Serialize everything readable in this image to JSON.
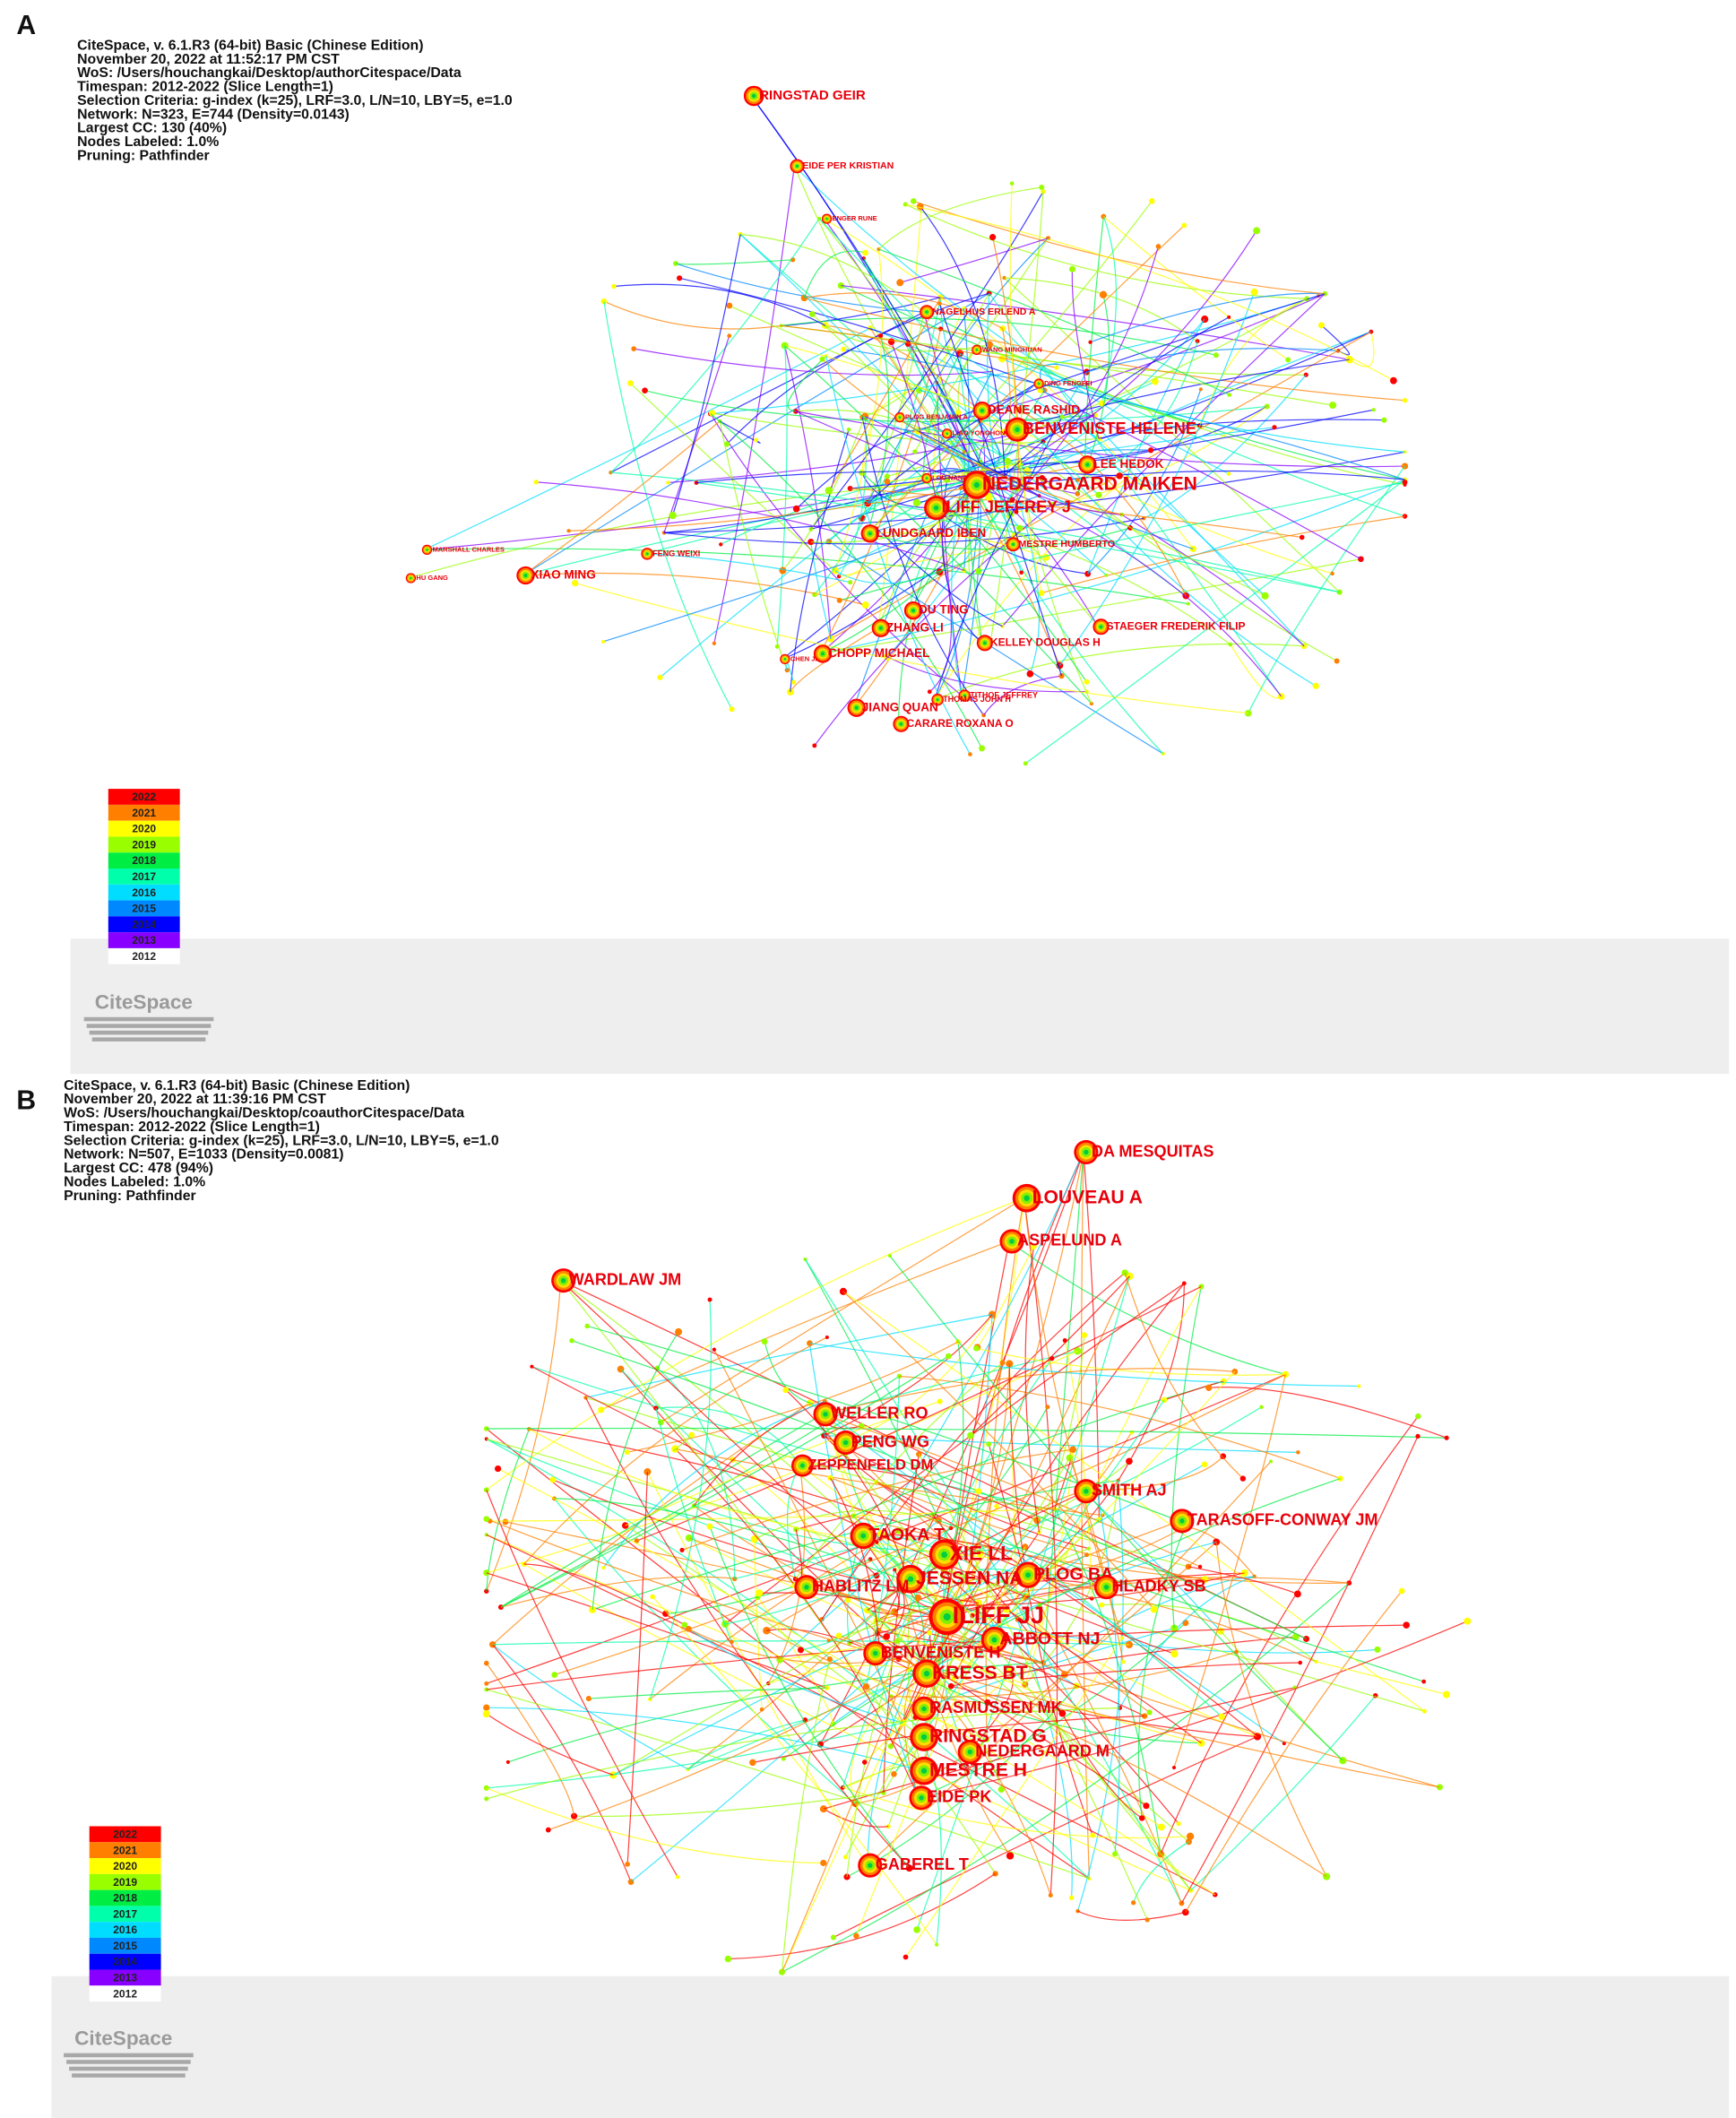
{
  "panels": [
    {
      "label": "A",
      "info": [
        "CiteSpace, v. 6.1.R3 (64-bit) Basic (Chinese Edition)",
        "November 20, 2022 at 11:52:17 PM CST",
        "WoS: /Users/houchangkai/Desktop/authorCitespace/Data",
        "Timespan: 2012-2022 (Slice Length=1)",
        "Selection Criteria: g-index (k=25), LRF=3.0, L/N=10, LBY=5, e=1.0",
        "Network: N=323, E=744 (Density=0.0143)",
        "Largest CC: 130 (40%)",
        "Nodes Labeled: 1.0%",
        "Pruning: Pathfinder"
      ],
      "nodes": [
        {
          "label": "RINGSTAD GEIR"
        },
        {
          "label": "EIDE PER KRISTIAN"
        },
        {
          "label": "ENGER RUNE"
        },
        {
          "label": "NAGELHUS ERLEND A"
        },
        {
          "label": "WANG MINGHUAN"
        },
        {
          "label": "DING FENGFEI"
        },
        {
          "label": "DEANE RASHID"
        },
        {
          "label": "PLOG BENJAMIN A"
        },
        {
          "label": "LIAO YONGHONG"
        },
        {
          "label": "BENVENISTE HELENE"
        },
        {
          "label": "LOU NANHONG"
        },
        {
          "label": "LEE HEDOK"
        },
        {
          "label": "NEDERGAARD MAIKEN"
        },
        {
          "label": "ILIFF JEFFREY J"
        },
        {
          "label": "LUNDGAARD IBEN"
        },
        {
          "label": "MESTRE HUMBERTO"
        },
        {
          "label": "MARSHALL CHARLES"
        },
        {
          "label": "FENG WEIXI"
        },
        {
          "label": "HU GANG"
        },
        {
          "label": "XIAO MING"
        },
        {
          "label": "DU TING"
        },
        {
          "label": "STAEGER FREDERIK FILIP"
        },
        {
          "label": "ZHANG LI"
        },
        {
          "label": "KELLEY DOUGLAS H"
        },
        {
          "label": "CHEN JIE"
        },
        {
          "label": "CHOPP MICHAEL"
        },
        {
          "label": "TITHOF JEFFREY"
        },
        {
          "label": "THOMAS JOHN H"
        },
        {
          "label": "JIANG QUAN"
        },
        {
          "label": "CARARE ROXANA O"
        }
      ],
      "legend": [
        "2022",
        "2021",
        "2020",
        "2019",
        "2018",
        "2017",
        "2016",
        "2015",
        "2014",
        "2013",
        "2012"
      ],
      "logo": "CiteSpace"
    },
    {
      "label": "B",
      "info": [
        "CiteSpace, v. 6.1.R3 (64-bit) Basic (Chinese Edition)",
        "November 20, 2022 at 11:39:16 PM CST",
        "WoS: /Users/houchangkai/Desktop/coauthorCitespace/Data",
        "Timespan: 2012-2022 (Slice Length=1)",
        "Selection Criteria: g-index (k=25), LRF=3.0, L/N=10, LBY=5, e=1.0",
        "Network: N=507, E=1033 (Density=0.0081)",
        "Largest CC: 478 (94%)",
        "Nodes Labeled: 1.0%",
        "Pruning: Pathfinder"
      ],
      "nodes": [
        {
          "label": "DA MESQUITAS"
        },
        {
          "label": "LOUVEAU A"
        },
        {
          "label": "ASPELUND A"
        },
        {
          "label": "WARDLAW JM"
        },
        {
          "label": "WELLER RO"
        },
        {
          "label": "PENG WG"
        },
        {
          "label": "ZEPPENFELD DM"
        },
        {
          "label": "SMITH AJ"
        },
        {
          "label": "TARASOFF-CONWAY JM"
        },
        {
          "label": "TAOKA T"
        },
        {
          "label": "XIE LL"
        },
        {
          "label": "PLOG BA"
        },
        {
          "label": "JESSEN NA"
        },
        {
          "label": "HLADKY SB"
        },
        {
          "label": "HABLITZ LM"
        },
        {
          "label": "ILIFF JJ"
        },
        {
          "label": "ABBOTT NJ"
        },
        {
          "label": "BENVENISTE H"
        },
        {
          "label": "KRESS BT"
        },
        {
          "label": "RASMUSSEN MK"
        },
        {
          "label": "RINGSTAD G"
        },
        {
          "label": "NEDERGAARD M"
        },
        {
          "label": "MESTRE H"
        },
        {
          "label": "EIDE PK"
        },
        {
          "label": "GABEREL T"
        }
      ],
      "legend": [
        "2022",
        "2021",
        "2020",
        "2019",
        "2018",
        "2017",
        "2016",
        "2015",
        "2014",
        "2013",
        "2012"
      ],
      "logo": "CiteSpace"
    }
  ]
}
